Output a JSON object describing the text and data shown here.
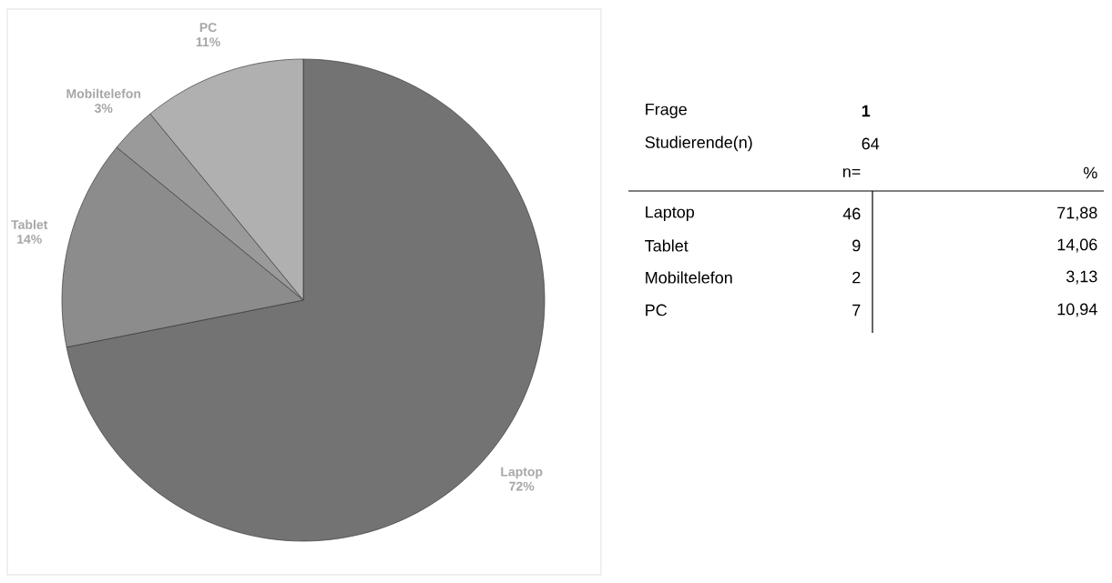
{
  "chart_data": [
    {
      "type": "pie",
      "categories": [
        "Laptop",
        "Tablet",
        "Mobiltelefon",
        "PC"
      ],
      "values": [
        71.88,
        14.06,
        3.13,
        10.94
      ],
      "colors": [
        "#737373",
        "#8c8c8c",
        "#9a9a9a",
        "#b0b0b0"
      ],
      "value_labels": [
        "72%",
        "14%",
        "3%",
        "11%"
      ]
    },
    {
      "type": "other",
      "annotations": [
        "Frage",
        "1",
        "Studierende(n)",
        "64",
        "n=",
        "%",
        "Laptop",
        "46",
        "71,88",
        "Tablet",
        "9",
        "14,06",
        "Mobiltelefon",
        "2",
        "3,13",
        "PC",
        "7",
        "10,94"
      ]
    }
  ]
}
